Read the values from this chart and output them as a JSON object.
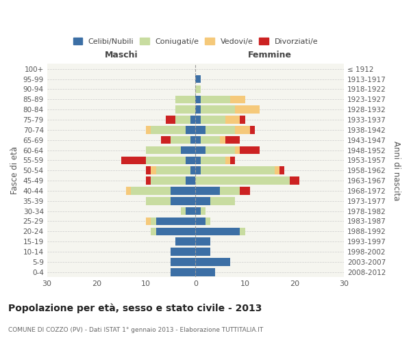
{
  "age_groups": [
    "0-4",
    "5-9",
    "10-14",
    "15-19",
    "20-24",
    "25-29",
    "30-34",
    "35-39",
    "40-44",
    "45-49",
    "50-54",
    "55-59",
    "60-64",
    "65-69",
    "70-74",
    "75-79",
    "80-84",
    "85-89",
    "90-94",
    "95-99",
    "100+"
  ],
  "birth_years": [
    "2008-2012",
    "2003-2007",
    "1998-2002",
    "1993-1997",
    "1988-1992",
    "1983-1987",
    "1978-1982",
    "1973-1977",
    "1968-1972",
    "1963-1967",
    "1958-1962",
    "1953-1957",
    "1948-1952",
    "1943-1947",
    "1938-1942",
    "1933-1937",
    "1928-1932",
    "1923-1927",
    "1918-1922",
    "1913-1917",
    "≤ 1912"
  ],
  "colors": {
    "celibi": "#3c6fa5",
    "coniugati": "#c8dca0",
    "vedovi": "#f5c97a",
    "divorziati": "#cc2222"
  },
  "males": {
    "celibi": [
      5,
      5,
      5,
      4,
      8,
      8,
      2,
      5,
      5,
      2,
      1,
      2,
      3,
      1,
      2,
      1,
      0,
      0,
      0,
      0,
      0
    ],
    "coniugati": [
      0,
      0,
      0,
      0,
      1,
      1,
      1,
      5,
      8,
      7,
      7,
      8,
      7,
      4,
      7,
      3,
      4,
      4,
      0,
      0,
      0
    ],
    "vedovi": [
      0,
      0,
      0,
      0,
      0,
      1,
      0,
      0,
      1,
      0,
      1,
      0,
      0,
      0,
      1,
      0,
      0,
      0,
      0,
      0,
      0
    ],
    "divorziati": [
      0,
      0,
      0,
      0,
      0,
      0,
      0,
      0,
      0,
      1,
      1,
      5,
      0,
      2,
      0,
      2,
      0,
      0,
      0,
      0,
      0
    ]
  },
  "females": {
    "celibi": [
      4,
      7,
      3,
      3,
      9,
      2,
      1,
      3,
      5,
      0,
      1,
      1,
      2,
      1,
      2,
      1,
      1,
      1,
      0,
      1,
      0
    ],
    "coniugati": [
      0,
      0,
      0,
      0,
      1,
      1,
      1,
      5,
      4,
      19,
      15,
      5,
      6,
      4,
      6,
      5,
      7,
      6,
      1,
      0,
      0
    ],
    "vedovi": [
      0,
      0,
      0,
      0,
      0,
      0,
      0,
      0,
      0,
      0,
      1,
      1,
      1,
      1,
      3,
      3,
      5,
      3,
      0,
      0,
      0
    ],
    "divorziati": [
      0,
      0,
      0,
      0,
      0,
      0,
      0,
      0,
      2,
      2,
      1,
      1,
      4,
      3,
      1,
      1,
      0,
      0,
      0,
      0,
      0
    ]
  },
  "xlim": 30,
  "title": "Popolazione per età, sesso e stato civile - 2013",
  "subtitle": "COMUNE DI COZZO (PV) - Dati ISTAT 1° gennaio 2013 - Elaborazione TUTTITALIA.IT",
  "xlabel_left": "Maschi",
  "xlabel_right": "Femmine",
  "ylabel_left": "Fasce di età",
  "ylabel_right": "Anni di nascita",
  "legend_labels": [
    "Celibi/Nubili",
    "Coniugati/e",
    "Vedovi/e",
    "Divorziati/e"
  ],
  "bg_color": "#f5f5ef",
  "fig_bg": "#ffffff"
}
